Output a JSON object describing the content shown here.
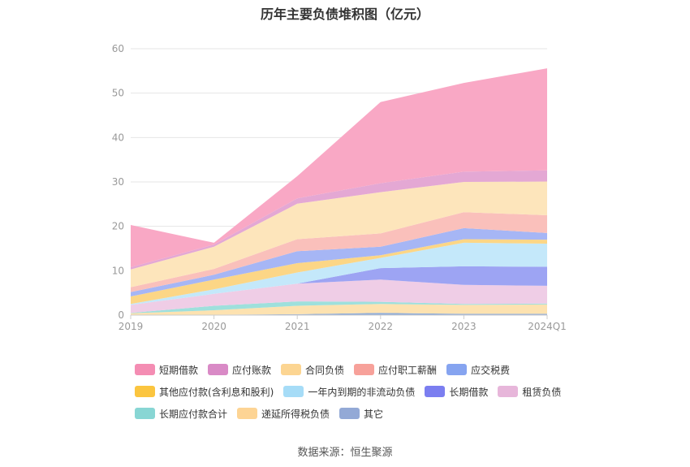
{
  "chart_data": {
    "type": "area",
    "title": "历年主要负债堆积图（亿元）",
    "categories": [
      "2019",
      "2020",
      "2021",
      "2022",
      "2023",
      "2024Q1"
    ],
    "ylim": [
      0,
      60
    ],
    "yticks": [
      0,
      10,
      20,
      30,
      40,
      50,
      60
    ],
    "grid": true,
    "legend_position": "bottom",
    "stacked": true,
    "series": [
      {
        "name": "其它",
        "color": "#8fadd9",
        "values": [
          0.1,
          0.1,
          0.2,
          0.5,
          0.3,
          0.3
        ]
      },
      {
        "name": "递延所得税负债",
        "color": "#fde2b0",
        "values": [
          0.3,
          1.0,
          1.9,
          2.0,
          2.0,
          2.1
        ]
      },
      {
        "name": "长期应付款合计",
        "color": "#9ee0dc",
        "values": [
          0.1,
          1.0,
          1.0,
          0.5,
          0.2,
          0.2
        ]
      },
      {
        "name": "租赁负债",
        "color": "#efcde6",
        "values": [
          1.8,
          2.7,
          4.0,
          5.0,
          4.3,
          4.0
        ]
      },
      {
        "name": "长期借款",
        "color": "#9da4f3",
        "values": [
          0.0,
          0.0,
          0.0,
          2.6,
          4.2,
          4.3
        ]
      },
      {
        "name": "一年内到期的非流动负债",
        "color": "#c4e8fa",
        "values": [
          0.2,
          1.0,
          2.5,
          2.3,
          5.3,
          5.2
        ]
      },
      {
        "name": "其他应付款(含利息和股利)",
        "color": "#fcd686",
        "values": [
          1.7,
          2.2,
          2.1,
          0.6,
          0.8,
          0.9
        ]
      },
      {
        "name": "应交税费",
        "color": "#a6b6f5",
        "values": [
          1.0,
          1.1,
          2.7,
          1.9,
          2.5,
          1.5
        ]
      },
      {
        "name": "应付职工薪酬",
        "color": "#fac0bb",
        "values": [
          1.1,
          1.3,
          2.7,
          3.0,
          3.6,
          4.0
        ]
      },
      {
        "name": "合同负债",
        "color": "#fde5bb",
        "values": [
          4.0,
          5.0,
          8.0,
          9.3,
          6.8,
          7.6
        ]
      },
      {
        "name": "应付账款",
        "color": "#e4a8d4",
        "values": [
          0.5,
          0.5,
          1.2,
          2.0,
          2.3,
          2.5
        ]
      },
      {
        "name": "短期借款",
        "color": "#f9a8c5",
        "values": [
          9.5,
          0.4,
          5.0,
          18.3,
          20.0,
          23.0
        ]
      }
    ]
  },
  "legend": {
    "rows": [
      [
        {
          "name": "短期借款",
          "color": "#f48db3"
        },
        {
          "name": "应付账款",
          "color": "#d98ac6"
        },
        {
          "name": "合同负债",
          "color": "#fcd592"
        },
        {
          "name": "应付职工薪酬",
          "color": "#f7a19a"
        },
        {
          "name": "应交税费",
          "color": "#86a4f0"
        }
      ],
      [
        {
          "name": "其他应付款(含利息和股利)",
          "color": "#fbc53f"
        },
        {
          "name": "一年内到期的非流动负债",
          "color": "#a6dcf7"
        },
        {
          "name": "长期借款",
          "color": "#7b7ef0"
        },
        {
          "name": "租赁负债",
          "color": "#e7b6da"
        }
      ],
      [
        {
          "name": "长期应付款合计",
          "color": "#88d6d4"
        },
        {
          "name": "递延所得税负债",
          "color": "#fdd494"
        },
        {
          "name": "其它",
          "color": "#93a9d6"
        }
      ]
    ]
  },
  "source": "数据来源：恒生聚源"
}
